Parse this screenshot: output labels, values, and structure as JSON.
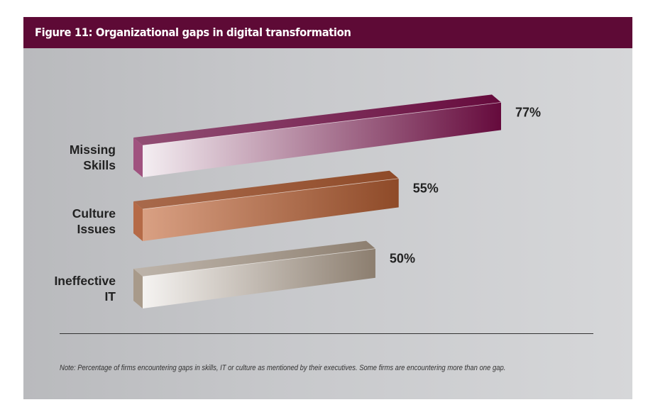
{
  "header": {
    "title": "Figure 11: Organizational gaps in digital transformation"
  },
  "chart_data": {
    "type": "bar",
    "orientation": "horizontal",
    "style": "3d-perspective",
    "title": "Figure 11: Organizational gaps in digital transformation",
    "categories": [
      "Missing Skills",
      "Culture Issues",
      "Ineffective IT"
    ],
    "category_lines": [
      [
        "Missing",
        "Skills"
      ],
      [
        "Culture",
        "Issues"
      ],
      [
        "Ineffective",
        "IT"
      ]
    ],
    "values": [
      77,
      55,
      50
    ],
    "value_labels": [
      "77%",
      "55%",
      "50%"
    ],
    "unit": "%",
    "xlim": [
      0,
      100
    ],
    "xlabel": "",
    "ylabel": "",
    "grid": false,
    "legend": "none",
    "colors": [
      {
        "light": "#f4eef2",
        "dark": "#650a3c",
        "side": "#a0527f",
        "top": "#8a3a66"
      },
      {
        "light": "#d9a083",
        "dark": "#8e4a28",
        "side": "#b56a47",
        "top": "#a45a36"
      },
      {
        "light": "#f5f3f1",
        "dark": "#8c7e6f",
        "side": "#a89a8a",
        "top": "#bdb2a6"
      }
    ]
  },
  "note": "Note: Percentage of firms encountering gaps in skills, IT or culture as mentioned by their executives. Some firms are encountering more than one gap."
}
